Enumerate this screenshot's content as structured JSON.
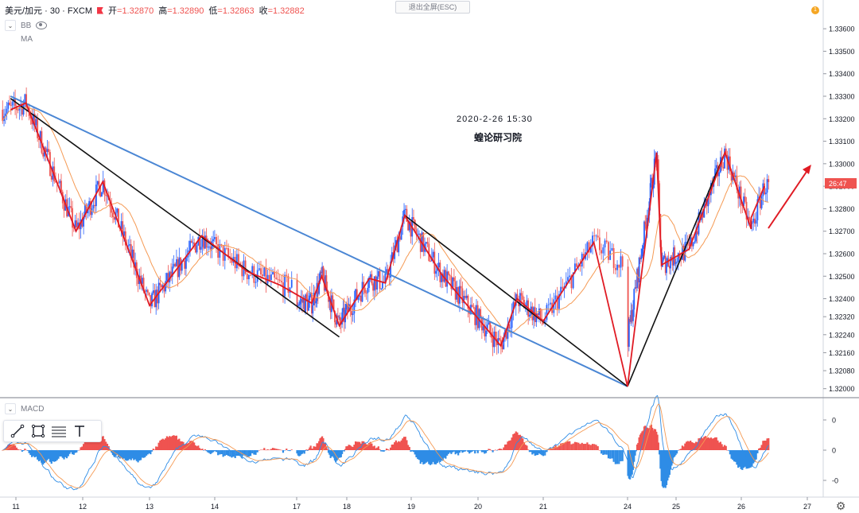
{
  "header": {
    "symbol": "美元/加元 · 30 · FXCM",
    "open_label": "开",
    "open": "=1.32870",
    "high_label": "高",
    "high": "=1.32890",
    "low_label": "低",
    "low": "=1.32863",
    "close_label": "收",
    "close": "=1.32882"
  },
  "indicators": {
    "bb": "BB",
    "ma": "MA",
    "macd": "MACD"
  },
  "exit_fullscreen": "退出全屏(ESC)",
  "notification_badge": "1",
  "annotation": {
    "date": "2020-2-26 15:30",
    "author": "蝗论研习院"
  },
  "price_tag": "26:47",
  "colors": {
    "up": "#2962ff",
    "down": "#ef5350",
    "ma": "#f59a54",
    "zigzag": "#e01b24",
    "trend": "#111111",
    "channel": "#4a86d4",
    "macd_pos": "#ef5350",
    "macd_neg": "#2e8ce6",
    "arrow": "#e01b24"
  },
  "x_axis": {
    "ticks": [
      "11",
      "12",
      "13",
      "14",
      "17",
      "18",
      "19",
      "20",
      "21",
      "24",
      "25",
      "26",
      "27"
    ]
  },
  "y_axis": {
    "ticks": [
      "1.33600",
      "1.33500",
      "1.33400",
      "1.33300",
      "1.33200",
      "1.33100",
      "1.33000",
      "1.32900",
      "1.32800",
      "1.32700",
      "1.32600",
      "1.32500",
      "1.32400",
      "1.32320",
      "1.32240",
      "1.32160",
      "1.32080",
      "1.32000"
    ]
  },
  "macd_axis": {
    "ticks": [
      "0",
      "0",
      "-0"
    ]
  },
  "tools": [
    "trend-line-tool",
    "rectangle-tool",
    "fib-tool",
    "text-tool"
  ],
  "chart_data": {
    "type": "candlestick",
    "instrument": "USD/CAD",
    "timeframe": "30",
    "ylim": [
      1.3196,
      1.3365
    ],
    "zigzag_points": [
      {
        "x": 10.92,
        "y": 1.3324
      },
      {
        "x": 11.15,
        "y": 1.3327
      },
      {
        "x": 11.9,
        "y": 1.327
      },
      {
        "x": 12.3,
        "y": 1.3292
      },
      {
        "x": 13.0,
        "y": 1.3237
      },
      {
        "x": 13.8,
        "y": 1.3268
      },
      {
        "x": 14.4,
        "y": 1.3252
      },
      {
        "x": 14.8,
        "y": 1.3246
      },
      {
        "x": 17.3,
        "y": 1.3238
      },
      {
        "x": 17.5,
        "y": 1.325
      },
      {
        "x": 17.85,
        "y": 1.3228
      },
      {
        "x": 18.35,
        "y": 1.3249
      },
      {
        "x": 18.6,
        "y": 1.3247
      },
      {
        "x": 18.9,
        "y": 1.3277
      },
      {
        "x": 19.45,
        "y": 1.3251
      },
      {
        "x": 20.35,
        "y": 1.3219
      },
      {
        "x": 20.6,
        "y": 1.324
      },
      {
        "x": 21.0,
        "y": 1.323
      },
      {
        "x": 21.6,
        "y": 1.3265
      },
      {
        "x": 23.85,
        "y": 1.3201
      },
      {
        "x": 24.6,
        "y": 1.3305
      },
      {
        "x": 24.7,
        "y": 1.3255
      },
      {
        "x": 25.2,
        "y": 1.3262
      },
      {
        "x": 25.75,
        "y": 1.3305
      },
      {
        "x": 26.15,
        "y": 1.3271
      },
      {
        "x": 26.15,
        "y": 1.3276
      },
      {
        "x": 26.35,
        "y": 1.329
      }
    ],
    "trend_lines": [
      {
        "from": {
          "x": 10.92,
          "y": 1.3329
        },
        "to": {
          "x": 17.85,
          "y": 1.3223
        }
      },
      {
        "from": {
          "x": 18.9,
          "y": 1.3277
        },
        "to": {
          "x": 23.85,
          "y": 1.3201
        }
      },
      {
        "from": {
          "x": 23.85,
          "y": 1.3201
        },
        "to": {
          "x": 25.75,
          "y": 1.3305
        }
      }
    ],
    "channel_line": {
      "from": {
        "x": 10.92,
        "y": 1.333
      },
      "to": {
        "x": 23.85,
        "y": 1.3201
      }
    },
    "last_price": 1.32882,
    "macd_range": [
      -1.2,
      1.2
    ]
  }
}
